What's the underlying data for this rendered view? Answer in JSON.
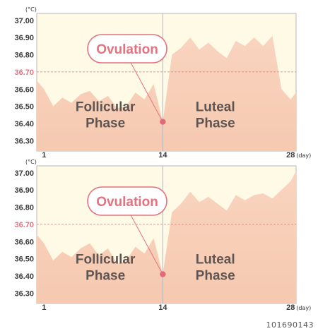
{
  "chart_data": [
    {
      "type": "area",
      "unit_label": "(°C)",
      "yticks": [
        "36.30",
        "36.40",
        "36.50",
        "36.60",
        "36.70",
        "36.80",
        "36.90",
        "37.00"
      ],
      "ylim": [
        36.24,
        37.04
      ],
      "threshold": 36.7,
      "threshold_label": "36.70",
      "xlim": [
        0.2,
        28.6
      ],
      "x_labels": [
        {
          "x": 1,
          "text": "1"
        },
        {
          "x": 14,
          "text": "14"
        },
        {
          "x": 28,
          "text": "28"
        }
      ],
      "x_unit": "(day)",
      "divider_x": 14,
      "ovulation_label": "Ovulation",
      "ovulation_point": {
        "x": 14,
        "y": 36.41
      },
      "phase_left": [
        "Follicular",
        "Phase"
      ],
      "phase_right": [
        "Luteal",
        "Phase"
      ],
      "x": [
        0.2,
        1,
        2,
        3,
        4,
        5,
        6,
        7,
        8,
        9,
        10,
        11,
        12,
        13,
        14,
        15,
        16,
        17,
        18,
        19,
        20,
        21,
        22,
        23,
        24,
        25,
        26,
        27,
        28,
        28.6
      ],
      "y": [
        36.65,
        36.6,
        36.5,
        36.55,
        36.52,
        36.57,
        36.59,
        36.53,
        36.56,
        36.49,
        36.5,
        36.58,
        36.54,
        36.63,
        36.41,
        36.8,
        36.84,
        36.9,
        36.83,
        36.87,
        36.82,
        36.78,
        36.88,
        36.85,
        36.9,
        36.85,
        36.91,
        36.6,
        36.54,
        36.58
      ]
    },
    {
      "type": "area",
      "unit_label": "(°C)",
      "yticks": [
        "36.30",
        "36.40",
        "36.50",
        "36.60",
        "36.70",
        "36.80",
        "36.90",
        "37.00"
      ],
      "ylim": [
        36.24,
        37.04
      ],
      "threshold": 36.7,
      "threshold_label": "36.70",
      "xlim": [
        0.2,
        28.6
      ],
      "x_labels": [
        {
          "x": 1,
          "text": "1"
        },
        {
          "x": 14,
          "text": "14"
        },
        {
          "x": 28,
          "text": "28"
        }
      ],
      "x_unit": "(day)",
      "divider_x": 14,
      "ovulation_label": "Ovulation",
      "ovulation_point": {
        "x": 14,
        "y": 36.41
      },
      "phase_left": [
        "Follicular",
        "Phase"
      ],
      "phase_right": [
        "Luteal",
        "Phase"
      ],
      "x": [
        0.2,
        1,
        2,
        3,
        4,
        5,
        6,
        7,
        8,
        9,
        10,
        11,
        12,
        13,
        14,
        15,
        16,
        17,
        18,
        19,
        20,
        21,
        22,
        23,
        24,
        25,
        26,
        27,
        28,
        28.6
      ],
      "y": [
        36.64,
        36.59,
        36.49,
        36.54,
        36.51,
        36.56,
        36.59,
        36.52,
        36.56,
        36.47,
        36.49,
        36.57,
        36.53,
        36.62,
        36.41,
        36.77,
        36.82,
        36.89,
        36.83,
        36.86,
        36.82,
        36.78,
        36.87,
        36.84,
        36.87,
        36.88,
        36.85,
        36.9,
        36.95,
        37.01
      ]
    }
  ],
  "watermark": "101690143"
}
